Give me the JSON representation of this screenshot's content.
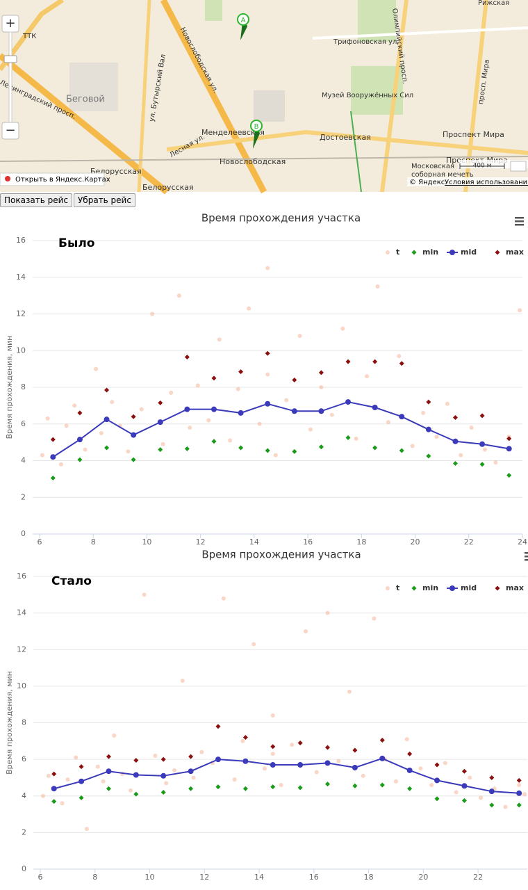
{
  "map": {
    "labels": [
      "ТТК",
      "Беговой",
      "Ленинградский просп.",
      "ул. Бутырский Вал",
      "Новослободская ул.",
      "Менделеевская",
      "Новослободская",
      "Достоевская",
      "Музей Вооружённых Сил",
      "Трифоновская ул.",
      "Олимпийский просп.",
      "просп. Мира",
      "Проспект Мира",
      "Проспект Мира",
      "Белорусская",
      "Белорусская",
      "Лесная ул.",
      "Московская",
      "соборная мечеть",
      "Рижская"
    ],
    "markers": [
      "A",
      "B"
    ],
    "zoom_in": "+",
    "zoom_out": "−",
    "open_link": "Открыть в Яндекс.Картах",
    "scale": "400 м",
    "copyright": "© Яндекс",
    "terms": "Условия использования"
  },
  "buttons": [
    "Показать рейс",
    "Убрать рейс"
  ],
  "chart_data": [
    {
      "type": "scatter",
      "title": "Время прохождения участка",
      "annotation": "Было",
      "y_label": "Время прохождения, мин",
      "xlim": [
        6,
        24
      ],
      "xticks": [
        6,
        8,
        10,
        12,
        14,
        16,
        18,
        20,
        22,
        24
      ],
      "ylim": [
        0,
        16
      ],
      "yticks": [
        0,
        2,
        4,
        6,
        8,
        10,
        12,
        14,
        16
      ],
      "grid": true,
      "legend": "top-right",
      "series": [
        {
          "name": "t",
          "color": "#f4a582",
          "marker": "circle",
          "line": false,
          "x": [
            6.1,
            6.3,
            6.8,
            7.0,
            7.3,
            7.7,
            8.1,
            8.3,
            8.7,
            9.0,
            9.3,
            9.8,
            10.2,
            10.6,
            10.9,
            11.2,
            11.6,
            11.9,
            12.3,
            12.7,
            13.1,
            13.4,
            13.8,
            14.2,
            14.5,
            14.8,
            15.2,
            15.7,
            16.1,
            16.5,
            16.9,
            17.3,
            17.8,
            18.2,
            18.6,
            19.0,
            19.4,
            19.9,
            20.3,
            20.8,
            21.2,
            21.7,
            22.1,
            22.6,
            23.0,
            23.5,
            23.9,
            14.5
          ],
          "values": [
            4.3,
            6.3,
            3.8,
            5.9,
            7.0,
            4.6,
            9.0,
            5.5,
            7.2,
            5.9,
            4.5,
            6.8,
            12.0,
            4.9,
            7.7,
            13.0,
            5.8,
            8.1,
            6.2,
            10.6,
            5.1,
            7.9,
            12.3,
            6.0,
            14.5,
            4.3,
            7.3,
            10.8,
            5.7,
            8.0,
            6.5,
            11.2,
            5.2,
            8.6,
            13.5,
            6.1,
            9.7,
            4.8,
            6.6,
            5.3,
            7.1,
            4.3,
            5.8,
            4.6,
            3.9,
            5.3,
            12.2,
            8.7
          ]
        },
        {
          "name": "min",
          "color": "#1a9c1a",
          "marker": "diamond",
          "line": false,
          "x": [
            6.5,
            7.5,
            8.5,
            9.5,
            10.5,
            11.5,
            12.5,
            13.5,
            14.5,
            15.5,
            16.5,
            17.5,
            18.5,
            19.5,
            20.5,
            21.5,
            22.5,
            23.5
          ],
          "values": [
            3.05,
            4.05,
            4.7,
            4.05,
            4.6,
            4.65,
            5.05,
            4.7,
            4.55,
            4.5,
            4.75,
            5.25,
            4.7,
            4.55,
            4.25,
            3.85,
            3.8,
            3.2
          ]
        },
        {
          "name": "mid",
          "color": "#3a3aba",
          "marker": "circle",
          "line": true,
          "x": [
            6.5,
            7.5,
            8.5,
            9.5,
            10.5,
            11.5,
            12.5,
            13.5,
            14.5,
            15.5,
            16.5,
            17.5,
            18.5,
            19.5,
            20.5,
            21.5,
            22.5,
            23.5
          ],
          "values": [
            4.2,
            5.15,
            6.25,
            5.4,
            6.1,
            6.8,
            6.8,
            6.6,
            7.1,
            6.7,
            6.7,
            7.2,
            6.9,
            6.4,
            5.7,
            5.05,
            4.9,
            4.65
          ]
        },
        {
          "name": "max",
          "color": "#8b1010",
          "marker": "diamond",
          "line": false,
          "x": [
            6.5,
            7.5,
            8.5,
            9.5,
            10.5,
            11.5,
            12.5,
            13.5,
            14.5,
            15.5,
            16.5,
            17.5,
            18.5,
            19.5,
            20.5,
            21.5,
            22.5,
            23.5
          ],
          "values": [
            5.15,
            6.6,
            7.85,
            6.4,
            7.15,
            9.65,
            8.5,
            8.85,
            9.85,
            8.4,
            8.8,
            9.4,
            9.4,
            9.3,
            7.2,
            6.35,
            6.45,
            5.2
          ]
        }
      ]
    },
    {
      "type": "scatter",
      "title": "Время прохождения участка",
      "annotation": "Стало",
      "y_label": "Время прохождения, мин",
      "xlim": [
        6,
        23.8
      ],
      "xticks": [
        6,
        8,
        10,
        12,
        14,
        16,
        18,
        20,
        22
      ],
      "ylim": [
        0,
        16
      ],
      "yticks": [
        0,
        2,
        4,
        6,
        8,
        10,
        12,
        14,
        16
      ],
      "grid": true,
      "legend": "top-right",
      "series": [
        {
          "name": "t",
          "color": "#f4a582",
          "marker": "circle",
          "line": false,
          "x": [
            6.1,
            6.3,
            6.8,
            7.0,
            7.3,
            7.7,
            8.1,
            8.3,
            8.7,
            9.0,
            9.3,
            9.8,
            10.2,
            10.6,
            10.9,
            11.2,
            11.6,
            11.9,
            12.3,
            12.7,
            13.1,
            13.4,
            13.8,
            14.2,
            14.5,
            14.8,
            15.2,
            15.7,
            16.1,
            16.5,
            16.9,
            17.3,
            17.8,
            18.2,
            18.6,
            19.0,
            19.4,
            19.9,
            20.3,
            20.8,
            21.2,
            21.7,
            22.1,
            22.6,
            23.0,
            23.5,
            23.7,
            14.5
          ],
          "values": [
            4.0,
            5.1,
            3.6,
            4.9,
            6.1,
            2.2,
            5.6,
            4.8,
            7.3,
            5.2,
            4.3,
            15.0,
            6.2,
            4.7,
            5.4,
            10.3,
            5.0,
            6.4,
            5.8,
            14.8,
            4.9,
            7.0,
            12.3,
            5.5,
            8.4,
            4.6,
            6.8,
            13.0,
            5.3,
            14.0,
            5.9,
            9.7,
            5.1,
            13.7,
            6.0,
            4.8,
            7.1,
            5.5,
            4.6,
            5.8,
            4.2,
            5.0,
            3.9,
            4.4,
            3.4,
            4.6,
            4.1,
            6.3
          ]
        },
        {
          "name": "min",
          "color": "#1a9c1a",
          "marker": "diamond",
          "line": false,
          "x": [
            6.5,
            7.5,
            8.5,
            9.5,
            10.5,
            11.5,
            12.5,
            13.5,
            14.5,
            15.5,
            16.5,
            17.5,
            18.5,
            19.5,
            20.5,
            21.5,
            22.5,
            23.5
          ],
          "values": [
            3.7,
            3.9,
            4.4,
            4.1,
            4.2,
            4.4,
            4.5,
            4.4,
            4.5,
            4.45,
            4.65,
            4.55,
            4.6,
            4.4,
            3.85,
            3.75,
            3.5,
            3.5
          ]
        },
        {
          "name": "mid",
          "color": "#3a3aba",
          "marker": "circle",
          "line": true,
          "x": [
            6.5,
            7.5,
            8.5,
            9.5,
            10.5,
            11.5,
            12.5,
            13.5,
            14.5,
            15.5,
            16.5,
            17.5,
            18.5,
            19.5,
            20.5,
            21.5,
            22.5,
            23.5
          ],
          "values": [
            4.4,
            4.8,
            5.35,
            5.15,
            5.1,
            5.35,
            6.0,
            5.9,
            5.7,
            5.7,
            5.8,
            5.55,
            6.05,
            5.4,
            4.85,
            4.55,
            4.25,
            4.15
          ]
        },
        {
          "name": "max",
          "color": "#8b1010",
          "marker": "diamond",
          "line": false,
          "x": [
            6.5,
            7.5,
            8.5,
            9.5,
            10.5,
            11.5,
            12.5,
            13.5,
            14.5,
            15.5,
            16.5,
            17.5,
            18.5,
            19.5,
            20.5,
            21.5,
            22.5,
            23.5
          ],
          "values": [
            5.2,
            5.6,
            6.15,
            5.95,
            6.0,
            6.15,
            7.8,
            7.2,
            6.7,
            6.9,
            6.65,
            6.5,
            7.05,
            6.3,
            5.7,
            5.35,
            5.0,
            4.85
          ]
        }
      ]
    }
  ]
}
